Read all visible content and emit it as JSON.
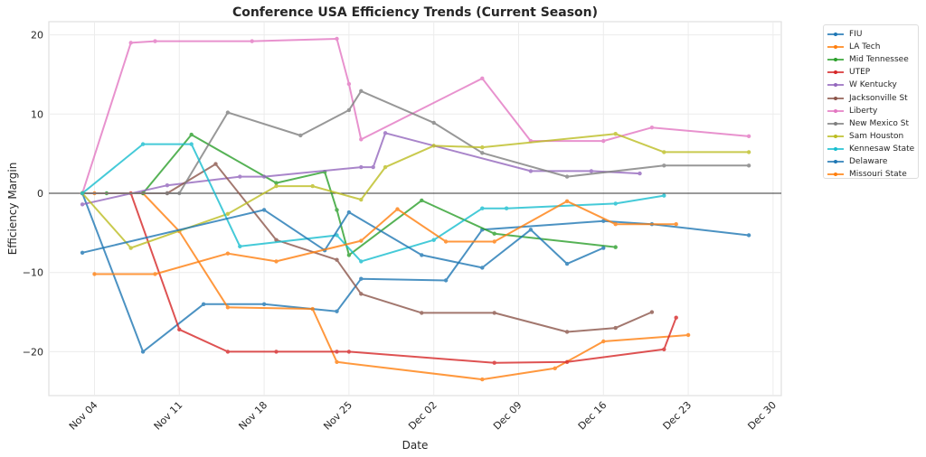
{
  "chart_data": {
    "type": "line",
    "title": "Conference USA Efficiency Trends (Current Season)",
    "xlabel": "Date",
    "ylabel": "Efficiency Margin",
    "ylim": [
      -25.5,
      21.7
    ],
    "yticks": [
      -20,
      -10,
      0,
      10,
      20
    ],
    "xticks": [
      "Nov 04",
      "Nov 11",
      "Nov 18",
      "Nov 25",
      "Dec 02",
      "Dec 09",
      "Dec 16",
      "Dec 23",
      "Dec 30"
    ],
    "grid": true,
    "zero_line": true,
    "legend_position": "outside-right",
    "series": [
      {
        "name": "FIU",
        "color": "#1f77b4",
        "x": [
          "Nov 03",
          "Nov 08",
          "Nov 13",
          "Nov 18",
          "Nov 24",
          "Nov 26",
          "Dec 03",
          "Dec 06",
          "Dec 16",
          "Dec 20",
          "Dec 28"
        ],
        "y": [
          0,
          -20.0,
          -14.0,
          -14.0,
          -14.9,
          -10.8,
          -11.0,
          -4.6,
          -3.5,
          -3.9,
          -5.3
        ]
      },
      {
        "name": "LA Tech",
        "color": "#ff7f0e",
        "x": [
          "Nov 03",
          "Nov 04",
          "Nov 08",
          "Nov 11",
          "Nov 15",
          "Nov 22",
          "Nov 24",
          "Dec 06",
          "Dec 12",
          "Dec 16",
          "Dec 23"
        ],
        "y": [
          0,
          0,
          0,
          -4.8,
          -14.4,
          -14.6,
          -21.3,
          -23.5,
          -22.1,
          -18.7,
          -17.9
        ]
      },
      {
        "name": "Mid Tennessee",
        "color": "#2ca02c",
        "x": [
          "Nov 03",
          "Nov 05",
          "Nov 08",
          "Nov 12",
          "Nov 19",
          "Nov 23",
          "Nov 24",
          "Nov 25",
          "Dec 01",
          "Dec 07",
          "Dec 17"
        ],
        "y": [
          0,
          0,
          0,
          7.4,
          1.3,
          2.7,
          -2.1,
          -7.8,
          -0.9,
          -5.1,
          -6.8
        ]
      },
      {
        "name": "UTEP",
        "color": "#d62728",
        "x": [
          "Nov 03",
          "Nov 07",
          "Nov 11",
          "Nov 15",
          "Nov 19",
          "Nov 24",
          "Nov 25",
          "Dec 07",
          "Dec 13",
          "Dec 21",
          "Dec 22"
        ],
        "y": [
          0,
          0,
          -17.2,
          -20.0,
          -20.0,
          -20.0,
          -20.0,
          -21.4,
          -21.3,
          -19.7,
          -15.7
        ]
      },
      {
        "name": "W Kentucky",
        "color": "#9467bd",
        "x": [
          "Nov 03",
          "Nov 10",
          "Nov 16",
          "Nov 18",
          "Nov 26",
          "Nov 27",
          "Nov 28",
          "Dec 10",
          "Dec 15",
          "Dec 19"
        ],
        "y": [
          -1.4,
          1.0,
          2.1,
          2.1,
          3.3,
          3.3,
          7.6,
          2.8,
          2.8,
          2.5
        ]
      },
      {
        "name": "Jacksonville St",
        "color": "#8c564b",
        "x": [
          "Nov 03",
          "Nov 10",
          "Nov 14",
          "Nov 19",
          "Nov 24",
          "Nov 26",
          "Dec 01",
          "Dec 07",
          "Dec 13",
          "Dec 17",
          "Dec 20"
        ],
        "y": [
          0,
          0,
          3.7,
          -5.9,
          -8.4,
          -12.7,
          -15.1,
          -15.1,
          -17.5,
          -17.0,
          -15.0
        ]
      },
      {
        "name": "Liberty",
        "color": "#e377c2",
        "x": [
          "Nov 03",
          "Nov 07",
          "Nov 09",
          "Nov 17",
          "Nov 24",
          "Nov 25",
          "Nov 26",
          "Dec 06",
          "Dec 10",
          "Dec 16",
          "Dec 20",
          "Dec 28"
        ],
        "y": [
          0,
          19.0,
          19.2,
          19.2,
          19.5,
          13.8,
          6.8,
          14.5,
          6.6,
          6.6,
          8.3,
          7.2
        ]
      },
      {
        "name": "New Mexico St",
        "color": "#7f7f7f",
        "x": [
          "Nov 03",
          "Nov 10",
          "Nov 11",
          "Nov 15",
          "Nov 21",
          "Nov 25",
          "Nov 26",
          "Dec 02",
          "Dec 06",
          "Dec 13",
          "Dec 21",
          "Dec 28"
        ],
        "y": [
          0,
          0,
          0,
          10.2,
          7.3,
          10.5,
          12.9,
          8.9,
          5.1,
          2.1,
          3.5,
          3.5
        ]
      },
      {
        "name": "Sam Houston",
        "color": "#bcbd22",
        "x": [
          "Nov 03",
          "Nov 07",
          "Nov 15",
          "Nov 19",
          "Nov 22",
          "Nov 26",
          "Nov 28",
          "Dec 02",
          "Dec 06",
          "Dec 17",
          "Dec 21",
          "Dec 28"
        ],
        "y": [
          0,
          -6.9,
          -2.6,
          0.9,
          0.9,
          -0.8,
          3.3,
          6.0,
          5.8,
          7.5,
          5.2,
          5.2
        ]
      },
      {
        "name": "Kennesaw State",
        "color": "#17becf",
        "x": [
          "Nov 03",
          "Nov 08",
          "Nov 12",
          "Nov 16",
          "Nov 24",
          "Nov 26",
          "Dec 02",
          "Dec 06",
          "Dec 08",
          "Dec 17",
          "Dec 21"
        ],
        "y": [
          0,
          6.2,
          6.2,
          -6.7,
          -5.3,
          -8.6,
          -5.9,
          -1.9,
          -1.9,
          -1.3,
          -0.3
        ]
      },
      {
        "name": "Delaware",
        "color": "#1f77b4",
        "x": [
          "Nov 03",
          "Nov 18",
          "Nov 23",
          "Nov 25",
          "Dec 01",
          "Dec 06",
          "Dec 10",
          "Dec 13",
          "Dec 16"
        ],
        "y": [
          -7.5,
          -2.1,
          -7.2,
          -2.4,
          -7.8,
          -9.4,
          -4.6,
          -8.9,
          -6.9
        ]
      },
      {
        "name": "Missouri State",
        "color": "#ff7f0e",
        "x": [
          "Nov 04",
          "Nov 09",
          "Nov 15",
          "Nov 19",
          "Nov 26",
          "Nov 29",
          "Dec 03",
          "Dec 07",
          "Dec 13",
          "Dec 17",
          "Dec 22"
        ],
        "y": [
          -10.2,
          -10.2,
          -7.6,
          -8.6,
          -6.0,
          -2.0,
          -6.1,
          -6.1,
          -1.0,
          -3.9,
          -3.9
        ]
      }
    ]
  }
}
